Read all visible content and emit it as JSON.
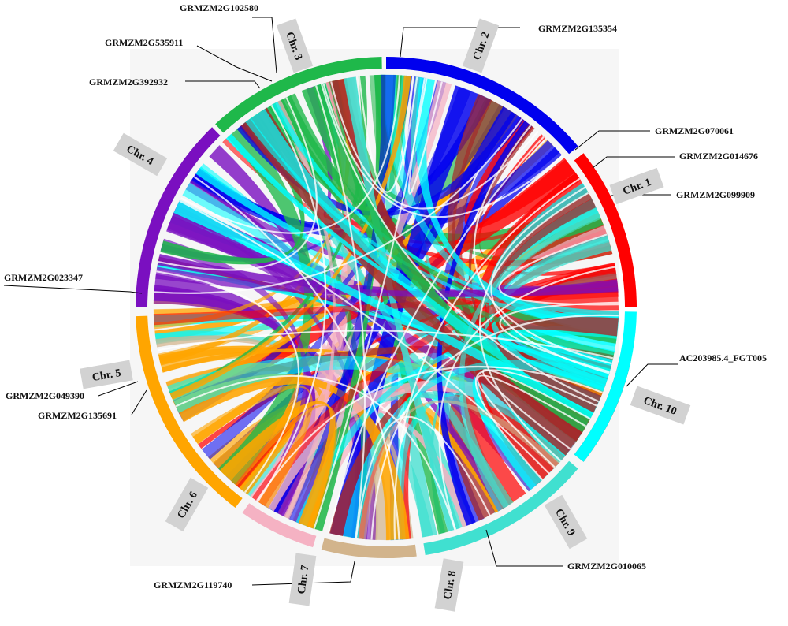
{
  "chromosomes": [
    {
      "id": "1",
      "label": "Chr. 1",
      "color": "#ff0000"
    },
    {
      "id": "2",
      "label": "Chr. 2",
      "color": "#0000ee"
    },
    {
      "id": "3",
      "label": "Chr. 3",
      "color": "#1fb84a"
    },
    {
      "id": "4",
      "label": "Chr. 4",
      "color": "#7a0fc0"
    },
    {
      "id": "5",
      "label": "Chr. 5",
      "color": "#ffa500"
    },
    {
      "id": "6",
      "label": "Chr. 6",
      "color": "#f5b2c3"
    },
    {
      "id": "7",
      "label": "Chr. 7",
      "color": "#d2b48c"
    },
    {
      "id": "8",
      "label": "Chr. 8",
      "color": "#40e0d0"
    },
    {
      "id": "9",
      "label": "Chr. 9",
      "color": "#a52a2a"
    },
    {
      "id": "10",
      "label": "Chr. 10",
      "color": "#00ffff"
    }
  ],
  "genes": [
    {
      "name": "GRMZM2G102580"
    },
    {
      "name": "GRMZM2G535911"
    },
    {
      "name": "GRMZM2G392932"
    },
    {
      "name": "GRMZM2G135354"
    },
    {
      "name": "GRMZM2G070061"
    },
    {
      "name": "GRMZM2G014676"
    },
    {
      "name": "GRMZM2G099909"
    },
    {
      "name": "GRMZM2G023347"
    },
    {
      "name": "GRMZM2G049390"
    },
    {
      "name": "GRMZM2G135691"
    },
    {
      "name": "AC203985.4_FGT005"
    },
    {
      "name": "GRMZM2G010065"
    },
    {
      "name": "GRMZM2G119740"
    }
  ]
}
